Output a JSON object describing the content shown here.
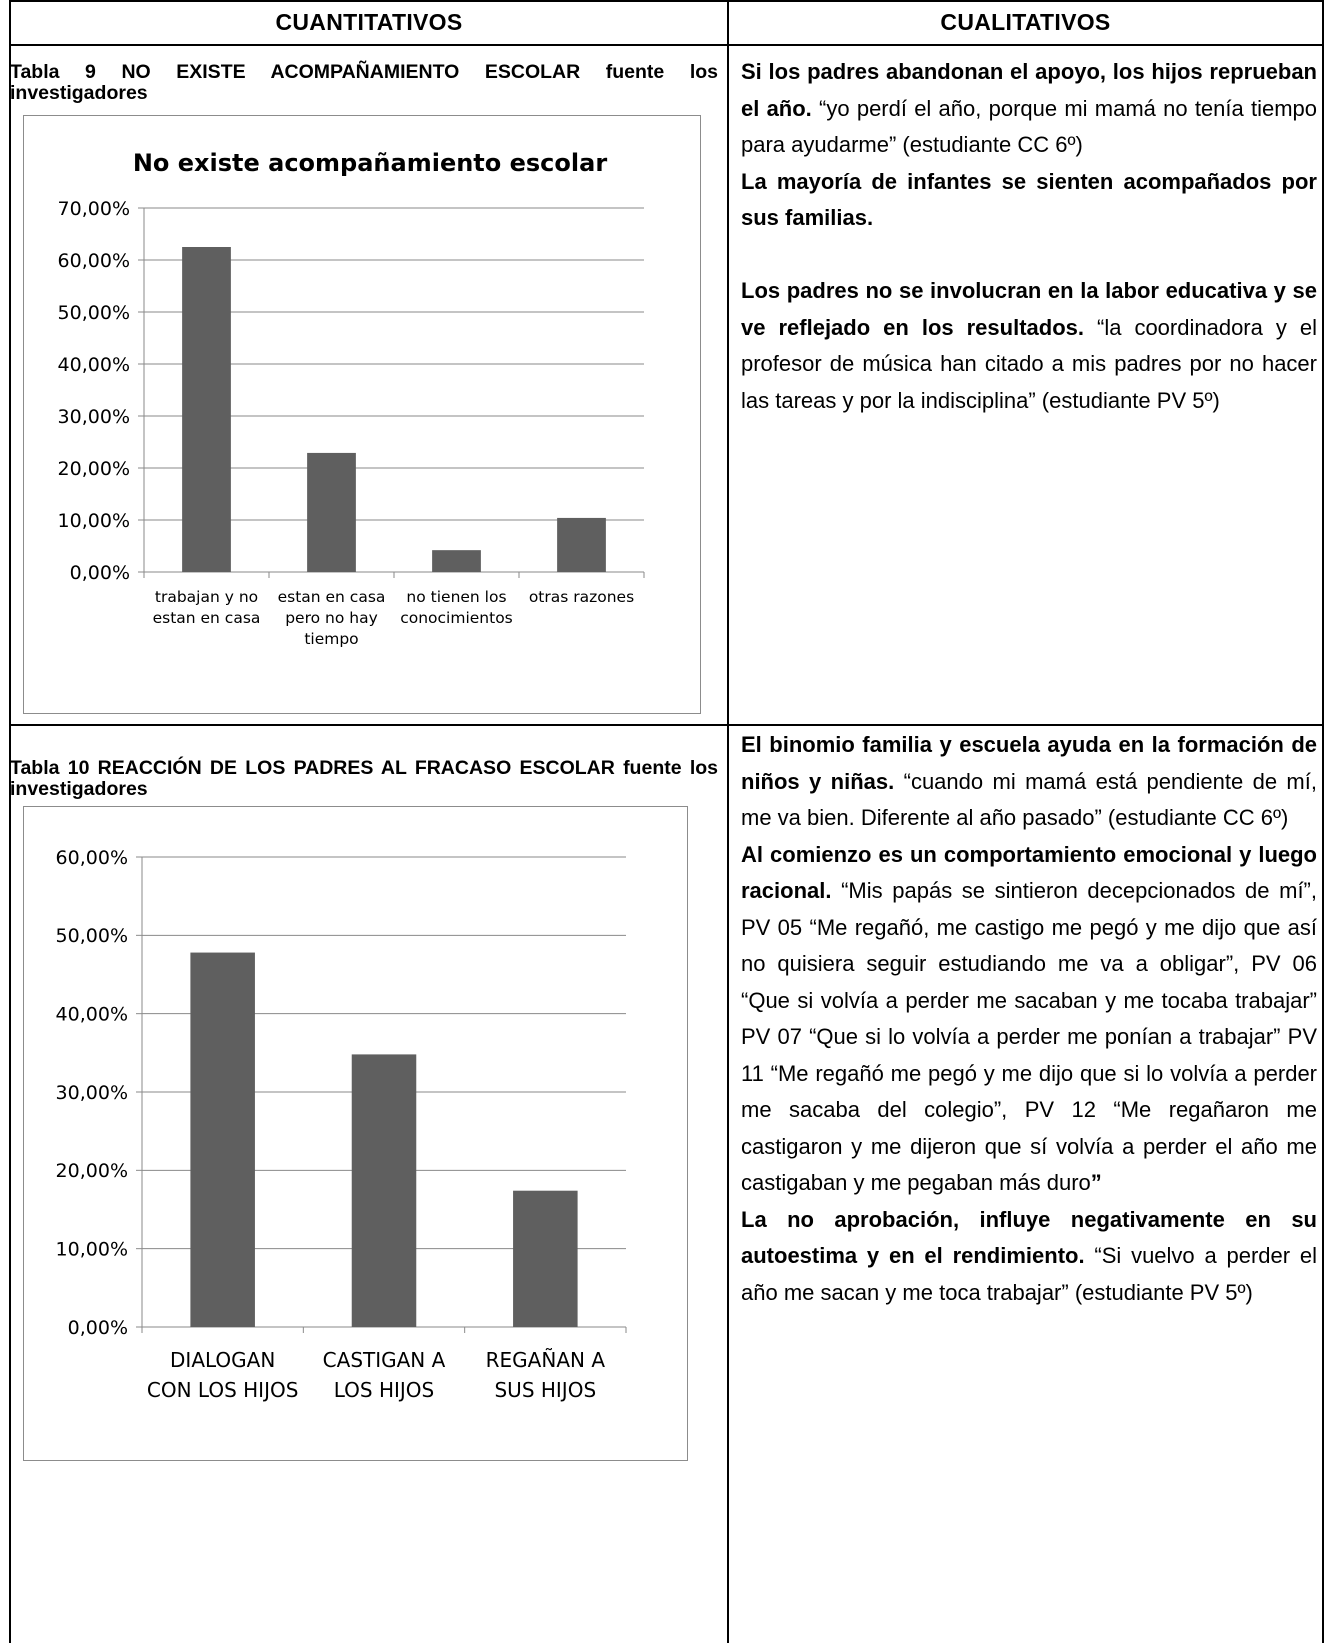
{
  "header": {
    "left": "CUANTITATIVOS",
    "right": "CUALITATIVOS"
  },
  "table9": {
    "caption": "Tabla 9 NO EXISTE ACOMPAÑAMIENTO ESCOLAR  fuente los investigadores"
  },
  "table10": {
    "caption": "Tabla 10 REACCIÓN DE LOS PADRES AL FRACASO ESCOLAR fuente los investigadores"
  },
  "chart_data": [
    {
      "type": "bar",
      "title": "No existe acompañamiento escolar",
      "categories": [
        [
          "trabajan y no",
          "estan en casa"
        ],
        [
          "estan en casa",
          "pero no hay",
          "tiempo"
        ],
        [
          "no tienen los",
          "conocimientos"
        ],
        [
          "otras razones"
        ]
      ],
      "values": [
        62.5,
        22.9,
        4.2,
        10.4
      ],
      "ylim": [
        0,
        70
      ],
      "yticks": [
        "0,00%",
        "10,00%",
        "20,00%",
        "30,00%",
        "40,00%",
        "50,00%",
        "60,00%",
        "70,00%"
      ],
      "grid": true,
      "bar_color": "#5f5f5f",
      "xlabel": "",
      "ylabel": ""
    },
    {
      "type": "bar",
      "title": "",
      "categories": [
        [
          "DIALOGAN",
          "CON LOS HIJOS"
        ],
        [
          "CASTIGAN A",
          "LOS HIJOS"
        ],
        [
          "REGAÑAN A",
          "SUS HIJOS"
        ]
      ],
      "values": [
        47.8,
        34.8,
        17.4
      ],
      "ylim": [
        0,
        60
      ],
      "yticks": [
        "0,00%",
        "10,00%",
        "20,00%",
        "30,00%",
        "40,00%",
        "50,00%",
        "60,00%"
      ],
      "grid": true,
      "bar_color": "#5f5f5f",
      "xlabel": "",
      "ylabel": ""
    }
  ],
  "qualitative1": {
    "b1": "Si los padres abandonan el apoyo, los hijos reprueban el año.",
    "t1": " “yo perdí el año, porque mi mamá no tenía tiempo para ayudarme” (estudiante CC 6º)",
    "b2": "La mayoría de infantes se sienten acompañados por sus familias.",
    "b3": "Los padres no se involucran en la labor educativa y se ve reflejado en los resultados.",
    "t3": " “la coordinadora y el profesor de música han citado a mis padres por no hacer las tareas y por la indisciplina” (estudiante PV 5º)"
  },
  "qualitative2": {
    "b1": "El binomio familia y escuela ayuda en la formación de niños y niñas.",
    "t1": " “cuando mi mamá está pendiente de mí, me va bien. Diferente al año pasado” (estudiante CC 6º)",
    "b2": "Al comienzo es un comportamiento emocional y luego racional.",
    "t2": " “Mis papás se sintieron decepcionados de mí”, PV 05 “Me regañó, me castigo me pegó y me dijo que así no quisiera seguir estudiando me va a obligar”, PV 06 “Que si volvía a perder me sacaban y me tocaba trabajar” PV 07 “Que si lo volvía a perder me ponían a trabajar” PV 11 “Me regañó me pegó y me dijo que si lo volvía a perder me sacaba del colegio”, PV 12 “Me regañaron me castigaron y me dijeron que sí volvía a perder el año me  castigaban y me pegaban más duro",
    "t2end": "”",
    "b3": "La no aprobación, influye negativamente en su autoestima y en el rendimiento.",
    "t3": " “Si vuelvo a perder el año me sacan y me toca trabajar” (estudiante PV 5º)"
  }
}
